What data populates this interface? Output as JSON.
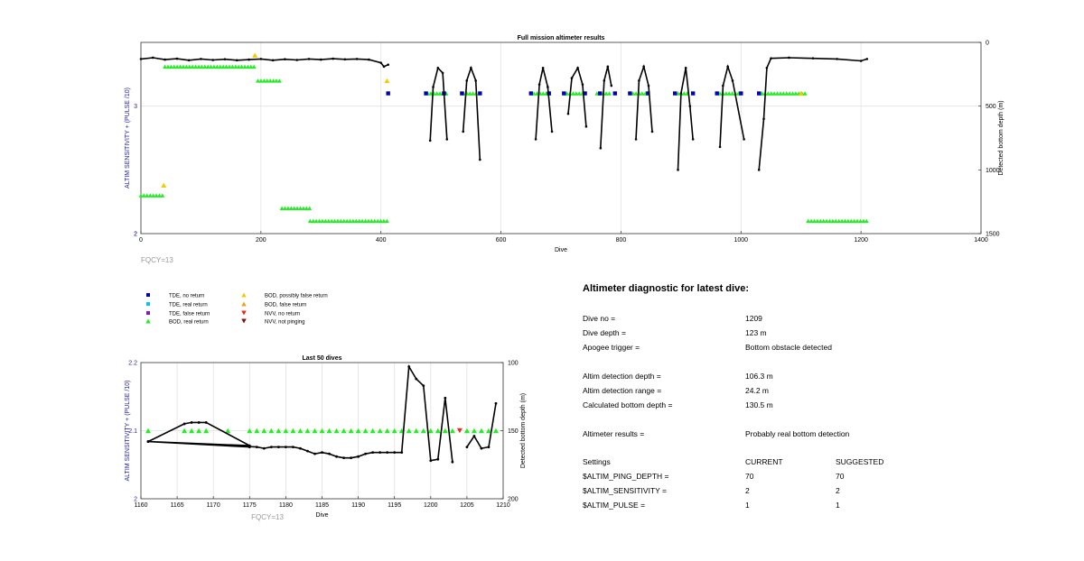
{
  "colors": {
    "tde_no": "#0000bb",
    "tde_real": "#00c8e6",
    "tde_false": "#7a1ccc",
    "bod_real": "#22ee22",
    "bod_possible": "#f2cc00",
    "bod_false": "#f0a020",
    "nvv_no": "#e0301c",
    "nvv_not": "#801010",
    "left_axis": "#2222aa",
    "fqcy": "#999999"
  },
  "chart_data": [
    {
      "type": "scatter",
      "title": "Full mission altimeter results",
      "xlabel": "Dive",
      "ylabel": "ALTIM SENSITIVITY + (PULSE /10)",
      "ylabel_right": "Detected bottom depth (m)",
      "xlim": [
        0,
        1400
      ],
      "ylim": [
        2,
        3.5
      ],
      "ylim_right": [
        1500,
        0
      ],
      "xticks": [
        "0",
        "200",
        "400",
        "600",
        "800",
        "1000",
        "1200",
        "1400"
      ],
      "yticks": [
        "2",
        "3"
      ],
      "yticks_right": [
        "0",
        "500",
        "1000",
        "1500"
      ],
      "grid": true,
      "legend_note": "FQCY=13",
      "bod_segments": [
        {
          "x0": 0,
          "x1": 40,
          "y": 2.3
        },
        {
          "x0": 40,
          "x1": 190,
          "y": 3.31
        },
        {
          "x0": 195,
          "x1": 235,
          "y": 3.2
        },
        {
          "x0": 235,
          "x1": 282,
          "y": 2.2
        },
        {
          "x0": 282,
          "x1": 412,
          "y": 2.1
        },
        {
          "x0": 478,
          "x1": 512,
          "y": 3.1
        },
        {
          "x0": 538,
          "x1": 560,
          "y": 3.1
        },
        {
          "x0": 655,
          "x1": 685,
          "y": 3.1
        },
        {
          "x0": 710,
          "x1": 740,
          "y": 3.1
        },
        {
          "x0": 760,
          "x1": 785,
          "y": 3.1
        },
        {
          "x0": 820,
          "x1": 845,
          "y": 3.1
        },
        {
          "x0": 895,
          "x1": 915,
          "y": 3.1
        },
        {
          "x0": 965,
          "x1": 1000,
          "y": 3.1
        },
        {
          "x0": 1035,
          "x1": 1110,
          "y": 3.1
        },
        {
          "x0": 1112,
          "x1": 1210,
          "y": 2.1
        }
      ],
      "tde_points": [
        {
          "x": 412,
          "y": 3.1
        },
        {
          "x": 475,
          "y": 3.1
        },
        {
          "x": 505,
          "y": 3.1
        },
        {
          "x": 535,
          "y": 3.1
        },
        {
          "x": 565,
          "y": 3.1
        },
        {
          "x": 650,
          "y": 3.1
        },
        {
          "x": 680,
          "y": 3.1
        },
        {
          "x": 705,
          "y": 3.1
        },
        {
          "x": 740,
          "y": 3.1
        },
        {
          "x": 765,
          "y": 3.1
        },
        {
          "x": 790,
          "y": 3.1
        },
        {
          "x": 815,
          "y": 3.1
        },
        {
          "x": 845,
          "y": 3.1
        },
        {
          "x": 890,
          "y": 3.1
        },
        {
          "x": 920,
          "y": 3.1
        },
        {
          "x": 960,
          "y": 3.1
        },
        {
          "x": 1000,
          "y": 3.1
        },
        {
          "x": 1030,
          "y": 3.1
        }
      ],
      "yellow_points": [
        {
          "x": 38,
          "y": 2.38
        },
        {
          "x": 190,
          "y": 3.4
        },
        {
          "x": 410,
          "y": 3.2
        },
        {
          "x": 1100,
          "y": 3.1
        }
      ],
      "depth_profile": [
        [
          0,
          130
        ],
        [
          20,
          120
        ],
        [
          40,
          135
        ],
        [
          60,
          128
        ],
        [
          80,
          140
        ],
        [
          100,
          130
        ],
        [
          120,
          138
        ],
        [
          140,
          132
        ],
        [
          160,
          140
        ],
        [
          180,
          135
        ],
        [
          200,
          130
        ],
        [
          220,
          140
        ],
        [
          240,
          132
        ],
        [
          260,
          138
        ],
        [
          280,
          130
        ],
        [
          300,
          135
        ],
        [
          320,
          128
        ],
        [
          340,
          133
        ],
        [
          360,
          130
        ],
        [
          380,
          135
        ],
        [
          400,
          160
        ],
        [
          405,
          190
        ],
        [
          412,
          175
        ],
        null,
        [
          482,
          770
        ],
        [
          487,
          350
        ],
        [
          495,
          200
        ],
        [
          503,
          240
        ],
        [
          510,
          760
        ],
        null,
        [
          537,
          700
        ],
        [
          543,
          300
        ],
        [
          550,
          200
        ],
        [
          558,
          300
        ],
        [
          565,
          920
        ],
        null,
        [
          658,
          760
        ],
        [
          664,
          330
        ],
        [
          670,
          200
        ],
        [
          678,
          350
        ],
        [
          685,
          700
        ],
        null,
        [
          712,
          560
        ],
        [
          718,
          280
        ],
        [
          728,
          200
        ],
        [
          736,
          330
        ],
        [
          742,
          660
        ],
        null,
        [
          766,
          830
        ],
        [
          772,
          300
        ],
        [
          778,
          190
        ],
        [
          784,
          340
        ],
        null,
        [
          825,
          760
        ],
        [
          830,
          300
        ],
        [
          838,
          190
        ],
        [
          846,
          340
        ],
        [
          852,
          700
        ],
        null,
        [
          895,
          1000
        ],
        [
          900,
          400
        ],
        [
          908,
          200
        ],
        [
          915,
          500
        ],
        [
          920,
          760
        ],
        null,
        [
          965,
          820
        ],
        [
          970,
          340
        ],
        [
          978,
          190
        ],
        [
          986,
          300
        ],
        [
          1005,
          760
        ],
        null,
        [
          1030,
          1000
        ],
        [
          1038,
          600
        ],
        [
          1043,
          200
        ],
        [
          1050,
          125
        ],
        [
          1080,
          120
        ],
        [
          1120,
          125
        ],
        [
          1160,
          130
        ],
        [
          1200,
          145
        ],
        [
          1210,
          130
        ]
      ]
    },
    {
      "type": "scatter",
      "title": "Last 50 dives",
      "xlabel": "Dive",
      "ylabel": "ALTIM SENSITIVITY + (PULSE /10)",
      "ylabel_right": "Detected bottom depth (m)",
      "xlim": [
        1160,
        1210
      ],
      "ylim": [
        2,
        2.2
      ],
      "ylim_right": [
        200,
        100
      ],
      "xticks": [
        "1160",
        "1165",
        "1170",
        "1175",
        "1180",
        "1185",
        "1190",
        "1195",
        "1200",
        "1205",
        "1210"
      ],
      "yticks": [
        "2.1",
        "2.2"
      ],
      "yticks_right": [
        "100",
        "150",
        "200"
      ],
      "grid": true,
      "legend_note": "FQCY=13",
      "bod_x": [
        1161,
        1166,
        1167,
        1168,
        1169,
        1172,
        1175,
        1176,
        1177,
        1178,
        1179,
        1180,
        1181,
        1182,
        1183,
        1184,
        1185,
        1186,
        1187,
        1188,
        1189,
        1190,
        1191,
        1192,
        1193,
        1194,
        1195,
        1196,
        1197,
        1198,
        1199,
        1200,
        1201,
        1202,
        1203,
        1205,
        1206,
        1207,
        1208,
        1209
      ],
      "bod_y": 2.1,
      "nvv_x": [
        1204
      ],
      "depth_path": [
        [
          1161,
          158
        ],
        [
          1166,
          145
        ],
        [
          1167,
          144
        ],
        [
          1168,
          144
        ],
        [
          1169,
          144
        ],
        [
          1175,
          161
        ],
        [
          1161,
          158
        ],
        [
          1175,
          162
        ],
        [
          1161,
          158
        ],
        [
          1176,
          162
        ],
        [
          1177,
          163
        ],
        [
          1178,
          162
        ],
        [
          1179,
          162
        ],
        [
          1180,
          162
        ],
        [
          1181,
          162
        ],
        [
          1182,
          163
        ],
        [
          1183,
          165
        ],
        [
          1184,
          167
        ],
        [
          1185,
          166
        ],
        [
          1186,
          167
        ],
        [
          1187,
          169
        ],
        [
          1188,
          170
        ],
        [
          1189,
          170
        ],
        [
          1190,
          169
        ],
        [
          1191,
          167
        ],
        [
          1192,
          166
        ],
        [
          1193,
          166
        ],
        [
          1194,
          166
        ],
        [
          1195,
          166
        ],
        [
          1196,
          166
        ],
        [
          1197,
          103
        ],
        [
          1198,
          112
        ],
        [
          1199,
          117
        ],
        [
          1200,
          172
        ],
        [
          1201,
          171
        ],
        [
          1202,
          126
        ],
        [
          1203,
          173
        ],
        null,
        [
          1205,
          162
        ],
        [
          1206,
          154
        ],
        [
          1207,
          163
        ],
        [
          1208,
          162
        ],
        [
          1209,
          130
        ]
      ]
    }
  ],
  "legend": [
    {
      "label": "TDE, no return",
      "color": "#0000bb",
      "marker": "square"
    },
    {
      "label": "TDE, real return",
      "color": "#00c8e6",
      "marker": "square"
    },
    {
      "label": "TDE, false return",
      "color": "#7a1ccc",
      "marker": "square"
    },
    {
      "label": "BOD, real return",
      "color": "#22ee22",
      "marker": "triangle-up"
    },
    {
      "label": "BOD, possibly false return",
      "color": "#f2cc00",
      "marker": "triangle-up"
    },
    {
      "label": "BOD, false return",
      "color": "#f0a020",
      "marker": "triangle-up"
    },
    {
      "label": "NVV, no return",
      "color": "#e0301c",
      "marker": "triangle-down"
    },
    {
      "label": "NVV, not pinging",
      "color": "#801010",
      "marker": "triangle-down"
    }
  ],
  "diagnostic": {
    "title": "Altimeter diagnostic for latest dive:",
    "rows": [
      {
        "label": "Dive no =",
        "value": "1209"
      },
      {
        "label": "Dive depth =",
        "value": "123 m"
      },
      {
        "label": "Apogee trigger =",
        "value": "Bottom obstacle detected"
      },
      {
        "label": "Altim detection depth =",
        "value": "106.3 m"
      },
      {
        "label": "Altim detection range =",
        "value": "24.2 m"
      },
      {
        "label": "Calculated bottom depth =",
        "value": "130.5 m"
      },
      {
        "label": "Altimeter results =",
        "value": "Probably real bottom detection"
      }
    ],
    "settings_header": {
      "label": "Settings",
      "current": "CURRENT",
      "suggested": "SUGGESTED"
    },
    "settings": [
      {
        "label": "$ALTIM_PING_DEPTH =",
        "current": "70",
        "suggested": "70"
      },
      {
        "label": "$ALTIM_SENSITIVITY =",
        "current": "2",
        "suggested": "2"
      },
      {
        "label": "$ALTIM_PULSE =",
        "current": "1",
        "suggested": "1"
      }
    ]
  }
}
